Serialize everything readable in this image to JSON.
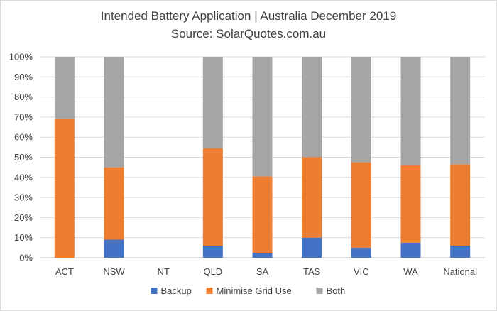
{
  "chart_data": {
    "type": "bar",
    "stacked": true,
    "title": "Intended Battery Application | Australia December 2019",
    "subtitle": "Source: SolarQuotes.com.au",
    "xlabel": "",
    "ylabel": "",
    "categories": [
      "ACT",
      "NSW",
      "NT",
      "QLD",
      "SA",
      "TAS",
      "VIC",
      "WA",
      "National"
    ],
    "series": [
      {
        "name": "Backup",
        "color": "#4472c4",
        "values": [
          0,
          9,
          0,
          6,
          2.5,
          10,
          5,
          7.5,
          6
        ]
      },
      {
        "name": "Minimise Grid Use",
        "color": "#ed7d31",
        "values": [
          69,
          36,
          0,
          48.5,
          38,
          40,
          42.5,
          38.5,
          40.5
        ]
      },
      {
        "name": "Both",
        "color": "#a5a5a5",
        "values": [
          31,
          55,
          0,
          45.5,
          59.5,
          50,
          52.5,
          54,
          53.5
        ]
      }
    ],
    "ylim": [
      0,
      100
    ],
    "yticks": [
      "0%",
      "10%",
      "20%",
      "30%",
      "40%",
      "50%",
      "60%",
      "70%",
      "80%",
      "90%",
      "100%"
    ],
    "grid": true,
    "legend": "bottom"
  }
}
